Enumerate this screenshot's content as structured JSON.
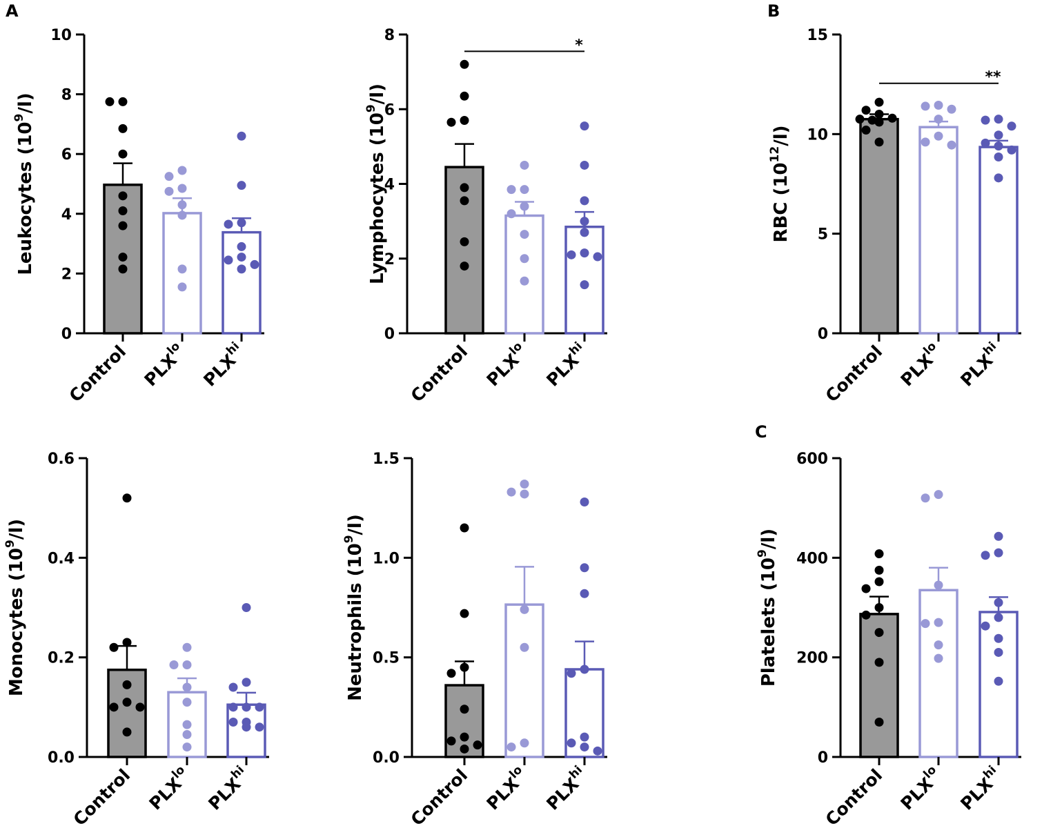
{
  "panels": [
    {
      "letter": "A"
    },
    {
      "letter": "B"
    },
    {
      "letter": "C"
    }
  ],
  "groups": [
    {
      "name": "Control",
      "base": "Control",
      "sup": ""
    },
    {
      "name": "PLX lo",
      "base": "PLX",
      "sup": "lo"
    },
    {
      "name": "PLX hi",
      "base": "PLX",
      "sup": "hi"
    }
  ],
  "colors": {
    "control_fill": "#999999",
    "control_edge": "#000000",
    "control_dot": "#000000",
    "lo_edge": "#9999d6",
    "lo_dot": "#9999d6",
    "hi_edge": "#5a5ab5",
    "hi_dot": "#5a5ab5",
    "axis": "#000000"
  },
  "chart_data": [
    {
      "type": "bar",
      "title": "Leukocytes",
      "panel": "A",
      "ylabel": {
        "base": "Leukocytes (10",
        "sup": "9",
        "tail": "/l)"
      },
      "ylim": [
        0,
        10
      ],
      "yticks": [
        0,
        2,
        4,
        6,
        8,
        10
      ],
      "ytick_labels": [
        "0",
        "2",
        "4",
        "6",
        "8",
        "10"
      ],
      "categories": [
        "Control",
        "PLX lo",
        "PLX hi"
      ],
      "means": [
        4.97,
        4.02,
        3.38
      ],
      "sem": [
        0.72,
        0.5,
        0.47
      ],
      "points": [
        [
          7.75,
          7.75,
          6.85,
          6.0,
          4.6,
          4.1,
          3.6,
          2.55,
          2.15
        ],
        [
          5.45,
          5.25,
          4.85,
          4.75,
          4.3,
          3.95,
          2.15,
          1.55
        ],
        [
          6.6,
          4.95,
          3.7,
          3.65,
          2.9,
          2.55,
          2.45,
          2.3,
          2.15
        ]
      ],
      "significance": []
    },
    {
      "type": "bar",
      "title": "Lymphocytes",
      "ylabel": {
        "base": "Lymphocytes (10",
        "sup": "9",
        "tail": "/l)"
      },
      "ylim": [
        0,
        8
      ],
      "yticks": [
        0,
        2,
        4,
        6,
        8
      ],
      "ytick_labels": [
        "0",
        "2",
        "4",
        "6",
        "8"
      ],
      "categories": [
        "Control",
        "PLX lo",
        "PLX hi"
      ],
      "means": [
        4.45,
        3.15,
        2.85
      ],
      "sem": [
        0.62,
        0.37,
        0.4
      ],
      "points": [
        [
          7.2,
          6.35,
          5.7,
          5.65,
          3.9,
          3.55,
          2.45,
          1.8
        ],
        [
          4.5,
          3.85,
          3.85,
          3.4,
          3.2,
          2.65,
          2.0,
          1.4
        ],
        [
          5.55,
          4.5,
          3.55,
          3.0,
          2.7,
          2.15,
          2.1,
          2.05,
          1.3
        ]
      ],
      "significance": [
        {
          "from": 0,
          "to": 2,
          "label": "*",
          "y": 7.55
        }
      ]
    },
    {
      "type": "bar",
      "title": "RBC",
      "panel": "B",
      "ylabel": {
        "base": "RBC (10",
        "sup": "12",
        "tail": "/l)"
      },
      "ylim": [
        0,
        15
      ],
      "yticks": [
        0,
        5,
        10,
        15
      ],
      "ytick_labels": [
        "0",
        "5",
        "10",
        "15"
      ],
      "categories": [
        "Control",
        "PLX lo",
        "PLX hi"
      ],
      "means": [
        10.75,
        10.35,
        9.35
      ],
      "sem": [
        0.25,
        0.28,
        0.32
      ],
      "points": [
        [
          11.6,
          11.2,
          11.0,
          10.8,
          10.75,
          10.7,
          10.6,
          10.2,
          9.6
        ],
        [
          11.45,
          11.4,
          11.25,
          10.75,
          9.9,
          9.6,
          9.45
        ],
        [
          10.75,
          10.7,
          10.4,
          9.95,
          9.55,
          9.4,
          9.2,
          8.85,
          7.8
        ]
      ],
      "significance": [
        {
          "from": 0,
          "to": 2,
          "label": "**",
          "y": 12.55
        }
      ]
    },
    {
      "type": "bar",
      "title": "Monocytes",
      "ylabel": {
        "base": "Monocytes (10",
        "sup": "9",
        "tail": "/l)"
      },
      "ylim": [
        0,
        0.6
      ],
      "yticks": [
        0,
        0.2,
        0.4,
        0.6
      ],
      "ytick_labels": [
        "0.0",
        "0.2",
        "0.4",
        "0.6"
      ],
      "categories": [
        "Control",
        "PLX lo",
        "PLX hi"
      ],
      "means": [
        0.175,
        0.13,
        0.105
      ],
      "sem": [
        0.048,
        0.028,
        0.024
      ],
      "points": [
        [
          0.52,
          0.23,
          0.22,
          0.145,
          0.11,
          0.1,
          0.1,
          0.05
        ],
        [
          0.22,
          0.185,
          0.185,
          0.14,
          0.11,
          0.065,
          0.045,
          0.02
        ],
        [
          0.3,
          0.15,
          0.14,
          0.1,
          0.1,
          0.1,
          0.07,
          0.07,
          0.06,
          0.06
        ]
      ],
      "significance": []
    },
    {
      "type": "bar",
      "title": "Neutrophils",
      "ylabel": {
        "base": "Neutrophils (10",
        "sup": "9",
        "tail": "/l)"
      },
      "ylim": [
        0,
        1.5
      ],
      "yticks": [
        0,
        0.5,
        1.0,
        1.5
      ],
      "ytick_labels": [
        "0.0",
        "0.5",
        "1.0",
        "1.5"
      ],
      "categories": [
        "Control",
        "PLX lo",
        "PLX hi"
      ],
      "means": [
        0.36,
        0.765,
        0.44
      ],
      "sem": [
        0.12,
        0.19,
        0.14
      ],
      "points": [
        [
          1.15,
          0.72,
          0.45,
          0.42,
          0.24,
          0.1,
          0.08,
          0.06,
          0.04
        ],
        [
          1.37,
          1.33,
          1.32,
          0.74,
          0.55,
          0.07,
          0.05
        ],
        [
          1.28,
          0.95,
          0.82,
          0.44,
          0.42,
          0.1,
          0.07,
          0.05,
          0.03
        ]
      ],
      "significance": []
    },
    {
      "type": "bar",
      "title": "Platelets",
      "panel": "C",
      "ylabel": {
        "base": "Platelets (10",
        "sup": "9",
        "tail": "/l)"
      },
      "ylim": [
        0,
        600
      ],
      "yticks": [
        0,
        200,
        400,
        600
      ],
      "ytick_labels": [
        "0",
        "200",
        "400",
        "600"
      ],
      "categories": [
        "Control",
        "PLX lo",
        "PLX hi"
      ],
      "means": [
        287,
        335,
        291
      ],
      "sem": [
        35,
        45,
        30
      ],
      "points": [
        [
          408,
          375,
          352,
          338,
          300,
          285,
          250,
          190,
          70
        ],
        [
          527,
          520,
          345,
          270,
          268,
          225,
          198
        ],
        [
          443,
          410,
          405,
          310,
          280,
          263,
          238,
          210,
          152
        ]
      ],
      "significance": []
    }
  ]
}
